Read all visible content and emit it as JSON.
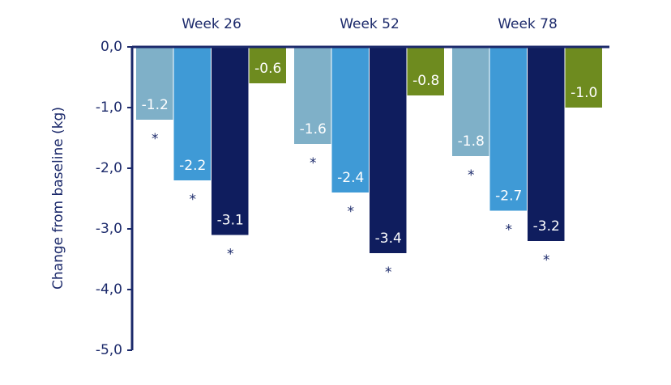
{
  "chart_data": {
    "type": "bar",
    "y_label": "Change from baseline (kg)",
    "categories": [
      "Week 26",
      "Week 52",
      "Week 78"
    ],
    "series": [
      {
        "color": "#7fb0c8",
        "values": [
          -1.2,
          -1.6,
          -1.8
        ],
        "significance": [
          "*",
          "*",
          "*"
        ]
      },
      {
        "color": "#3f9ad6",
        "values": [
          -2.2,
          -2.4,
          -2.7
        ],
        "significance": [
          "*",
          "*",
          "*"
        ]
      },
      {
        "color": "#0f1d5e",
        "values": [
          -3.1,
          -3.4,
          -3.2
        ],
        "significance": [
          "*",
          "*",
          "*"
        ]
      },
      {
        "color": "#6e8b1f",
        "values": [
          -0.6,
          -0.8,
          -1.0
        ],
        "value_labels": [
          "-0.6",
          "-0.8",
          "-1.0"
        ]
      }
    ],
    "ylim": [
      -5,
      0
    ],
    "yticks": [
      {
        "value": 0,
        "label": "0,0"
      },
      {
        "value": -1,
        "label": "-1,0"
      },
      {
        "value": -2,
        "label": "-2,0"
      },
      {
        "value": -3,
        "label": "-3,0"
      },
      {
        "value": -4,
        "label": "-4,0"
      },
      {
        "value": -5,
        "label": "-5,0"
      }
    ],
    "axis_color": "#1c2a6b"
  }
}
